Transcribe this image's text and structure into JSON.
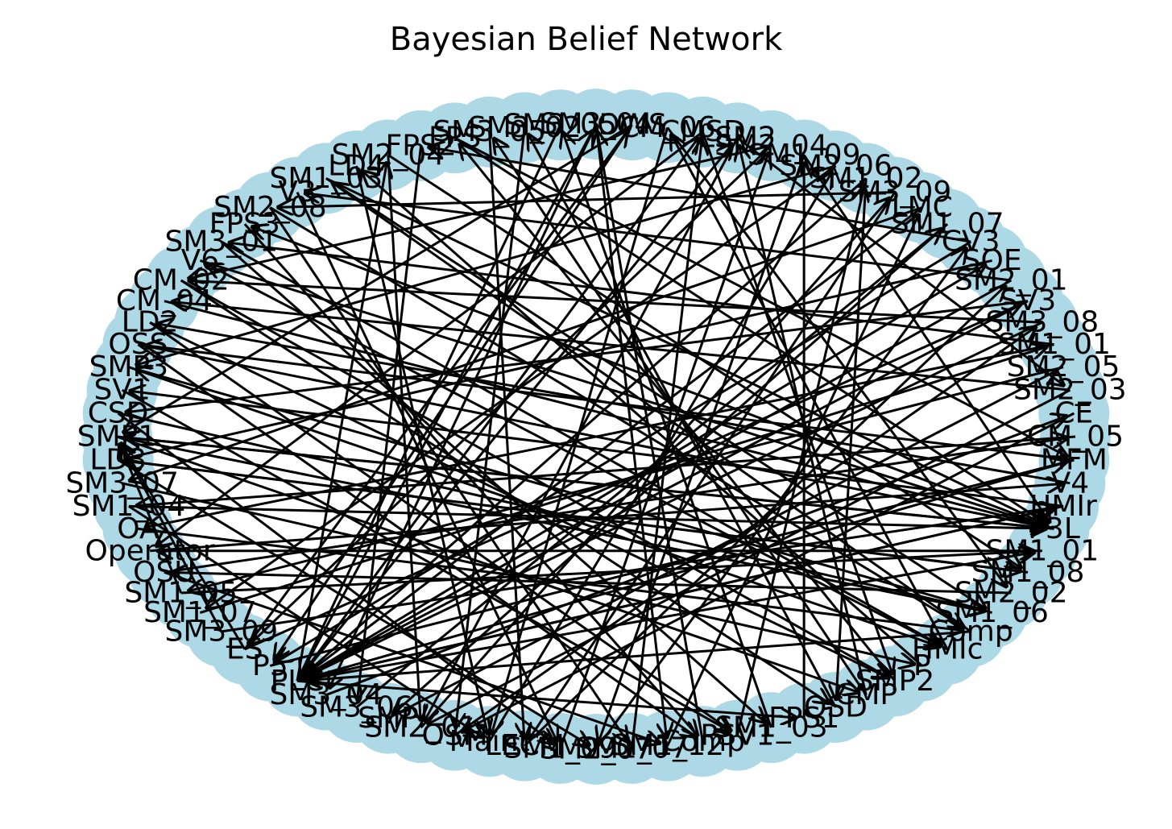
{
  "title": "Bayesian Belief Network",
  "colors": {
    "node": "#add8e6",
    "edge": "#000000",
    "label": "#000000",
    "background": "#ffffff"
  },
  "nodes": [
    "SM3_04",
    "OWS",
    "CM_06",
    "CMSD",
    "LSM2",
    "SM2_04",
    "SM1_09",
    "SM2_06",
    "SM1_02",
    "SM3_09",
    "LMC",
    "SM1_07",
    "CV3",
    "SOE",
    "SM2_01",
    "SV3",
    "SM3_08",
    "SM1_01",
    "SM2_05",
    "SM2_03",
    "CE",
    "CM_05",
    "MFM",
    "V4",
    "HMIr",
    "P3L",
    "SM1_01",
    "SM1_08",
    "SM2_02",
    "SM1_06",
    "Comp",
    "HMIc",
    "P",
    "SMP2",
    "CMP",
    "OSD",
    "FPS1",
    "SM1_03",
    "PSV1",
    "Comp",
    "SM1_12",
    "SM1_07",
    "SM2_07",
    "SM1_09",
    "LECM",
    "Maint",
    "OSM",
    "SM2_01",
    "SMP",
    "SM3_06",
    "SM3_04",
    "PLC",
    "P5",
    "ES",
    "SM3_09",
    "SM1_07",
    "SM1_05",
    "OSU",
    "Operator",
    "OA",
    "SM1_04",
    "SM3_07",
    "LD3",
    "SMP1",
    "CSD",
    "SV1",
    "SMP3",
    "OSS",
    "LD2",
    "CM_04",
    "CM_02",
    "V6",
    "SM3_01",
    "FPS3",
    "SM2_08",
    "V3",
    "SM1_03",
    "LD4",
    "SM2_04",
    "FPS2",
    "FPS",
    "SM3_05",
    "SM3_02",
    "SM3_05"
  ],
  "edges": [
    [
      0,
      50
    ],
    [
      0,
      40
    ],
    [
      1,
      52
    ],
    [
      1,
      63
    ],
    [
      2,
      45
    ],
    [
      2,
      28
    ],
    [
      3,
      58
    ],
    [
      3,
      33
    ],
    [
      4,
      47
    ],
    [
      4,
      19
    ],
    [
      5,
      53
    ],
    [
      5,
      70
    ],
    [
      6,
      42
    ],
    [
      6,
      25
    ],
    [
      7,
      55
    ],
    [
      7,
      66
    ],
    [
      8,
      51
    ],
    [
      8,
      35
    ],
    [
      9,
      44
    ],
    [
      9,
      74
    ],
    [
      10,
      51
    ],
    [
      10,
      61
    ],
    [
      11,
      48
    ],
    [
      12,
      52
    ],
    [
      12,
      79
    ],
    [
      13,
      62
    ],
    [
      14,
      51
    ],
    [
      14,
      75
    ],
    [
      15,
      51
    ],
    [
      15,
      64
    ],
    [
      16,
      70
    ],
    [
      16,
      51
    ],
    [
      17,
      59
    ],
    [
      17,
      72
    ],
    [
      18,
      56
    ],
    [
      19,
      47
    ],
    [
      19,
      69
    ],
    [
      20,
      46
    ],
    [
      21,
      60
    ],
    [
      22,
      67
    ],
    [
      22,
      51
    ],
    [
      23,
      68
    ],
    [
      24,
      65
    ],
    [
      24,
      51
    ],
    [
      25,
      63
    ],
    [
      25,
      73
    ],
    [
      26,
      58
    ],
    [
      27,
      62
    ],
    [
      28,
      57
    ],
    [
      29,
      66
    ],
    [
      30,
      76
    ],
    [
      30,
      51
    ],
    [
      31,
      71
    ],
    [
      31,
      2
    ],
    [
      32,
      77
    ],
    [
      33,
      80
    ],
    [
      34,
      81
    ],
    [
      34,
      4
    ],
    [
      35,
      82
    ],
    [
      36,
      6
    ],
    [
      37,
      83
    ],
    [
      38,
      8
    ],
    [
      39,
      0
    ],
    [
      40,
      10
    ],
    [
      41,
      3
    ],
    [
      42,
      12
    ],
    [
      43,
      5
    ],
    [
      44,
      14
    ],
    [
      45,
      7
    ],
    [
      46,
      16
    ],
    [
      47,
      9
    ],
    [
      48,
      18
    ],
    [
      49,
      11
    ],
    [
      50,
      20
    ],
    [
      51,
      0
    ],
    [
      51,
      3
    ],
    [
      51,
      4
    ],
    [
      51,
      13
    ],
    [
      51,
      24
    ],
    [
      51,
      26
    ],
    [
      51,
      36
    ],
    [
      51,
      78
    ],
    [
      52,
      22
    ],
    [
      53,
      15
    ],
    [
      53,
      1
    ],
    [
      54,
      24
    ],
    [
      55,
      17
    ],
    [
      56,
      26
    ],
    [
      57,
      21
    ],
    [
      58,
      23
    ],
    [
      59,
      30
    ],
    [
      60,
      25
    ],
    [
      61,
      32
    ],
    [
      62,
      27
    ],
    [
      63,
      34
    ],
    [
      63,
      25
    ],
    [
      63,
      29
    ],
    [
      64,
      29
    ],
    [
      65,
      38
    ],
    [
      66,
      31
    ],
    [
      67,
      25
    ],
    [
      68,
      33
    ],
    [
      69,
      25
    ],
    [
      70,
      35
    ],
    [
      71,
      25
    ],
    [
      72,
      37
    ],
    [
      73,
      39
    ],
    [
      74,
      41
    ],
    [
      75,
      43
    ],
    [
      76,
      25
    ],
    [
      77,
      45
    ],
    [
      78,
      47
    ],
    [
      79,
      49
    ],
    [
      80,
      25
    ],
    [
      81,
      44
    ],
    [
      82,
      46
    ],
    [
      83,
      51
    ],
    [
      53,
      63
    ],
    [
      54,
      63
    ],
    [
      56,
      63
    ],
    [
      57,
      40
    ],
    [
      60,
      45
    ],
    [
      62,
      42
    ],
    [
      64,
      43
    ],
    [
      67,
      39
    ],
    [
      68,
      38
    ],
    [
      70,
      33
    ],
    [
      72,
      31
    ],
    [
      74,
      30
    ],
    [
      76,
      29
    ],
    [
      78,
      27
    ],
    [
      80,
      22
    ]
  ]
}
